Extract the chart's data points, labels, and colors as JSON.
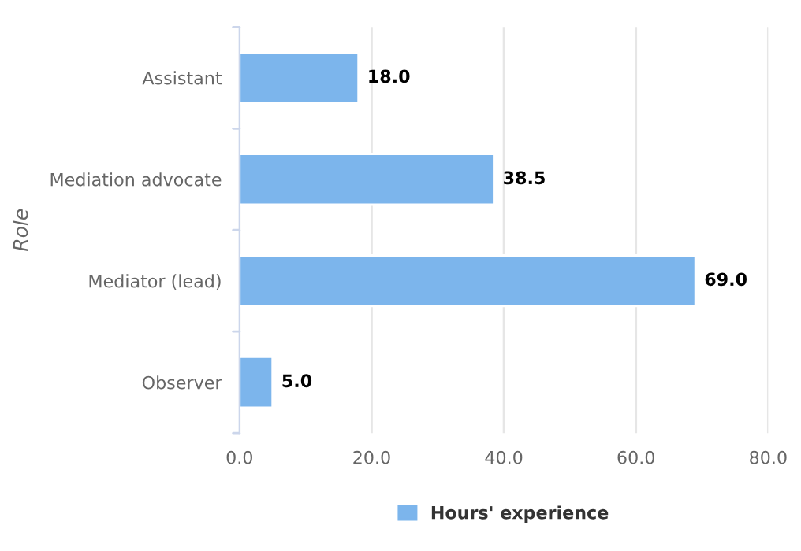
{
  "chart_data": {
    "type": "bar",
    "orientation": "horizontal",
    "ylabel": "Role",
    "categories": [
      "Assistant",
      "Mediation advocate",
      "Mediator (lead)",
      "Observer"
    ],
    "series": [
      {
        "name": "Hours' experience",
        "color": "#7cb5ec",
        "values": [
          18.0,
          38.5,
          69.0,
          5.0
        ]
      }
    ],
    "value_labels": [
      "18.0",
      "38.5",
      "69.0",
      "5.0"
    ],
    "xlim": [
      0,
      80
    ],
    "xticks": [
      {
        "value": 0,
        "label": "0.0"
      },
      {
        "value": 20,
        "label": "20.0"
      },
      {
        "value": 40,
        "label": "40.0"
      },
      {
        "value": 60,
        "label": "60.0"
      },
      {
        "value": 80,
        "label": "80.0"
      }
    ],
    "grid": "x",
    "legend": "bottom"
  }
}
